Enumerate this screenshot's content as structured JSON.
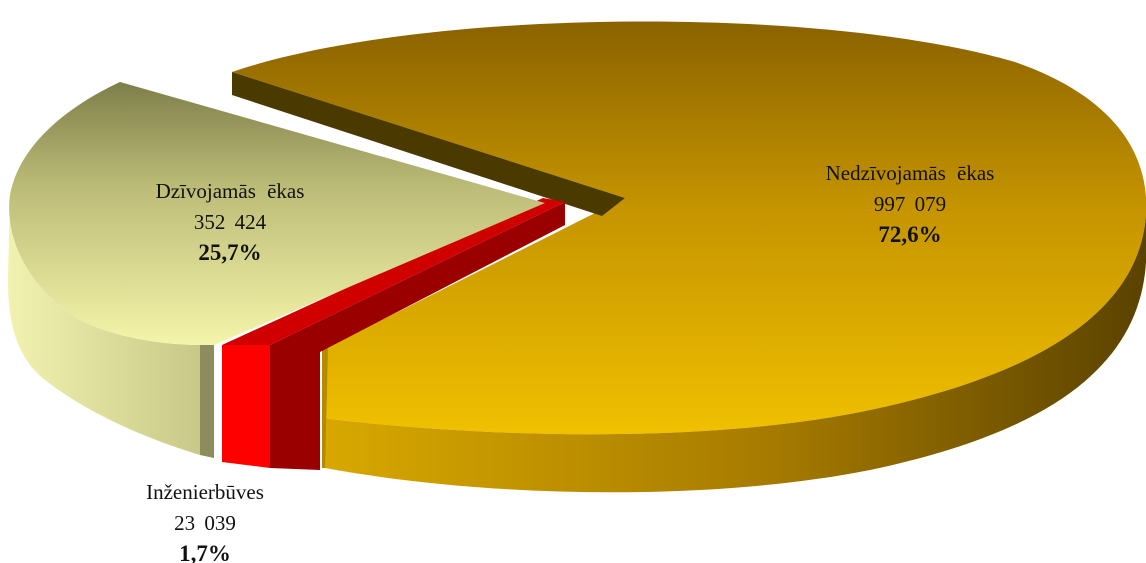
{
  "chart_data": {
    "type": "pie",
    "style": "3d-exploded",
    "slices": [
      {
        "name": "Nedzīvojamās ēkas",
        "value_label": "997 079",
        "value": 997079,
        "percent_label": "72,6%",
        "percent": 72.6,
        "color": "#e2b300"
      },
      {
        "name": "Dzīvojamās ēkas",
        "value_label": "352 424",
        "value": 352424,
        "percent_label": "25,7%",
        "percent": 25.7,
        "color": "#eeeea2"
      },
      {
        "name": "Inženierbūves",
        "value_label": "23 039",
        "value": 23039,
        "percent_label": "1,7%",
        "percent": 1.7,
        "color": "#ff0000"
      }
    ]
  }
}
